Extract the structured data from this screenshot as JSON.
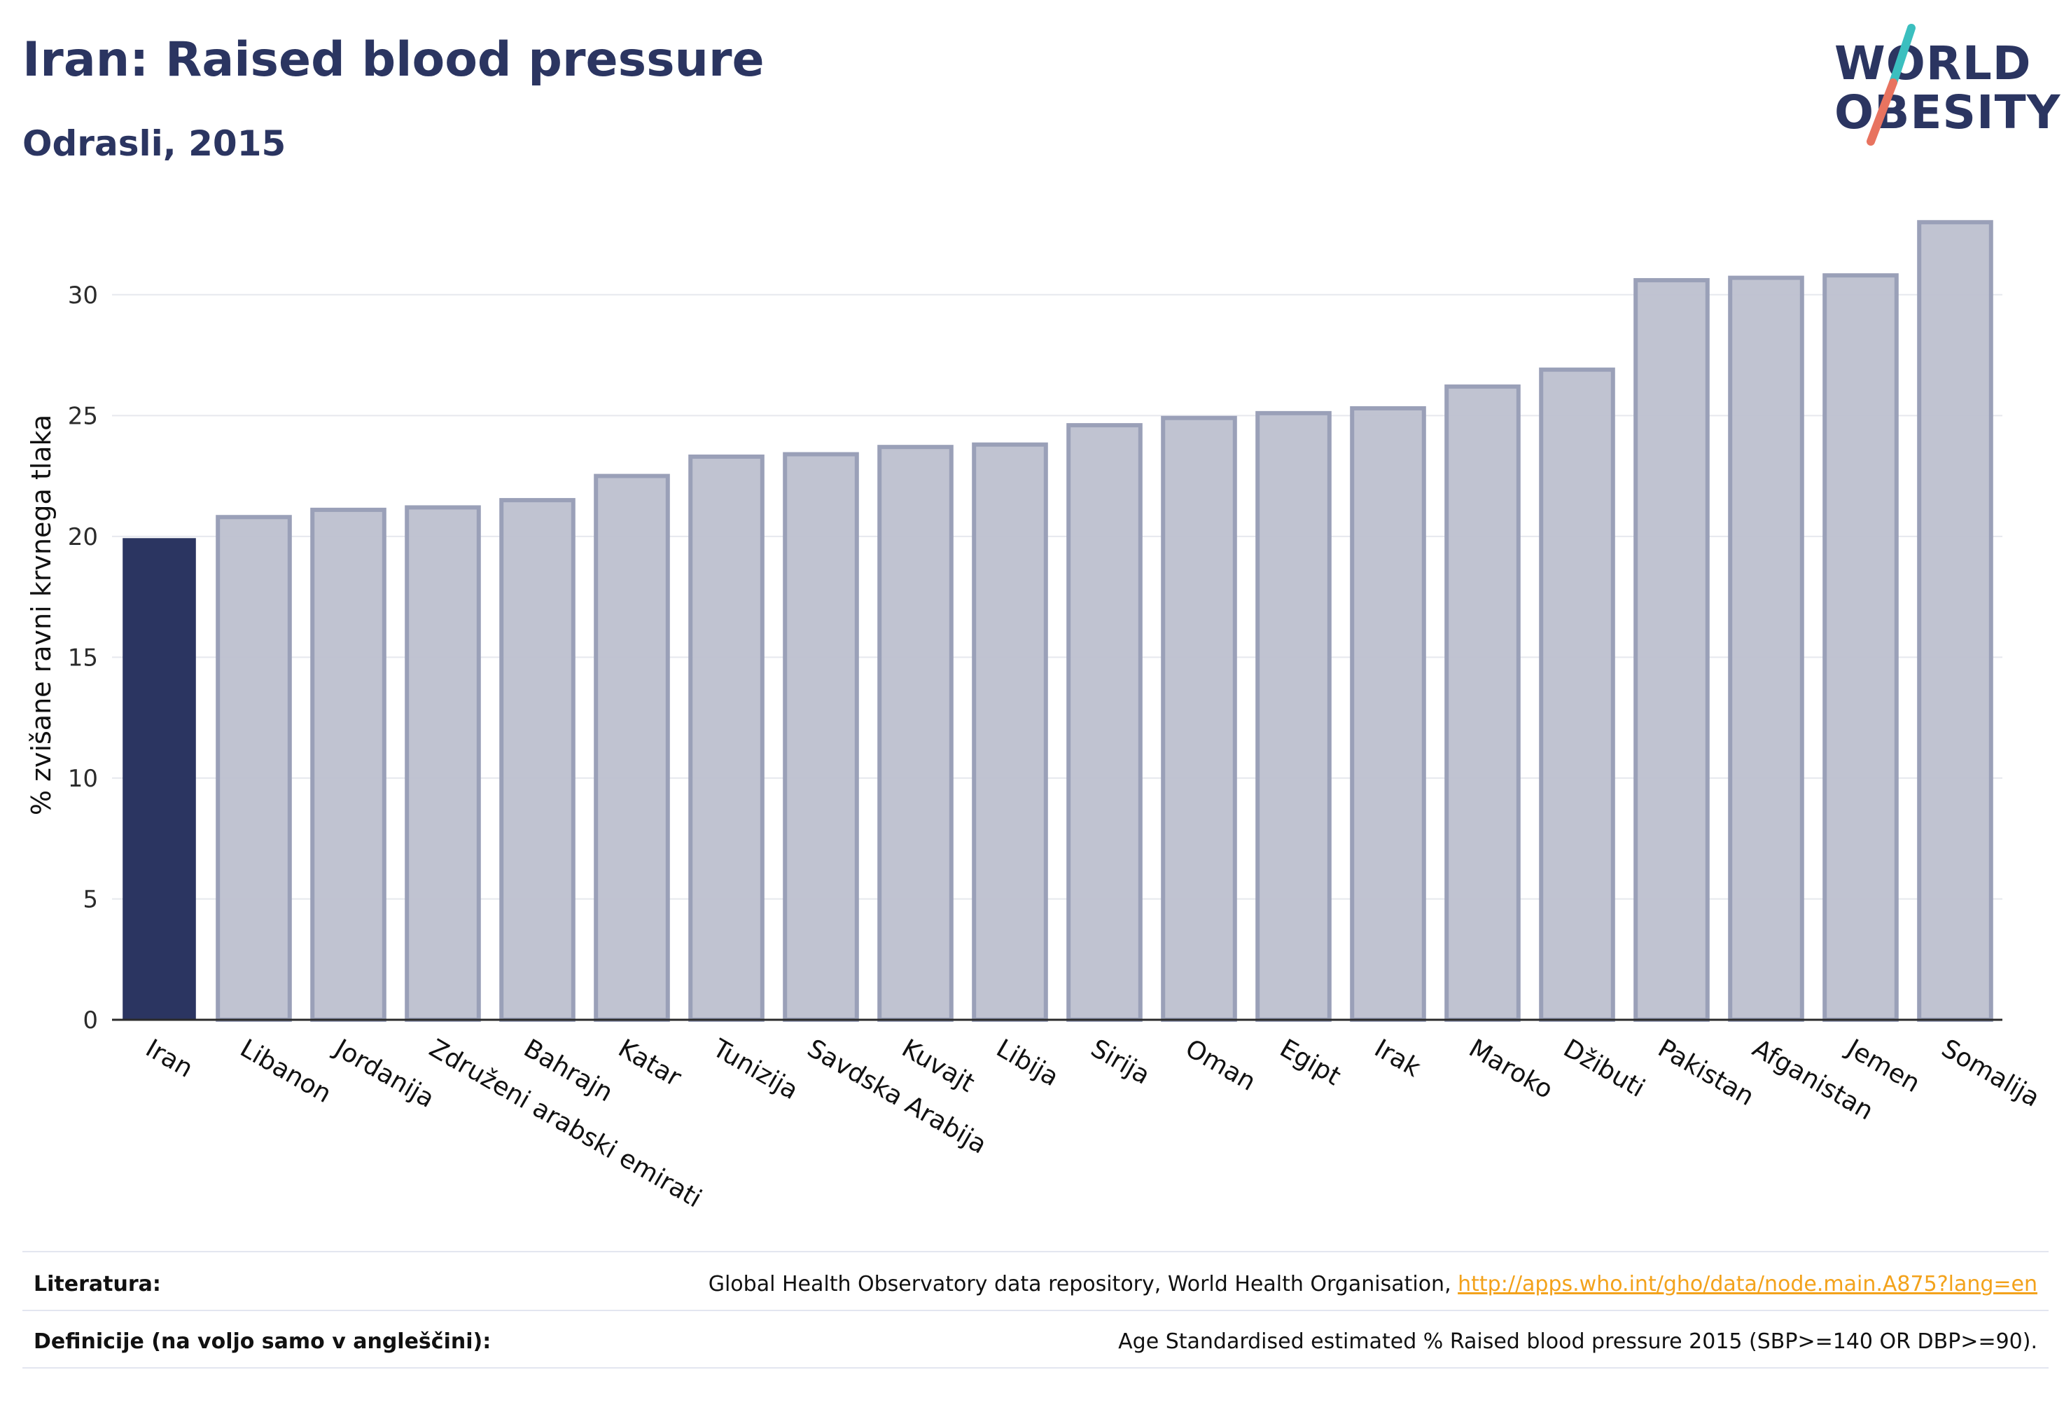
{
  "header": {
    "title": "Iran: Raised blood pressure",
    "subtitle": "Odrasli, 2015"
  },
  "logo": {
    "line1": "WORLD",
    "line2": "OBESITY",
    "slash_colors": [
      "#3bbfbf",
      "#e8735f"
    ]
  },
  "chart_data": {
    "type": "bar",
    "title": "Iran: Raised blood pressure",
    "subtitle": "Odrasli, 2015",
    "ylabel": "% zvišane ravni krvnega tlaka",
    "xlabel": "",
    "ylim": [
      0,
      33.5
    ],
    "yticks": [
      0,
      5,
      10,
      15,
      20,
      25,
      30
    ],
    "grid": true,
    "highlight": "Iran",
    "colors": {
      "highlight": "#2b3561",
      "other_fill": "#bdc0cf",
      "other_stroke": "#9aa0b8"
    },
    "categories": [
      "Iran",
      "Libanon",
      "Jordanija",
      "Združeni arabski emirati",
      "Bahrajn",
      "Katar",
      "Tunizija",
      "Savdska Arabija",
      "Kuvajt",
      "Libija",
      "Sirija",
      "Oman",
      "Egipt",
      "Irak",
      "Maroko",
      "Džibuti",
      "Pakistan",
      "Afganistan",
      "Jemen",
      "Somalija"
    ],
    "values": [
      19.9,
      20.8,
      21.1,
      21.2,
      21.5,
      22.5,
      23.3,
      23.4,
      23.7,
      23.8,
      24.6,
      24.9,
      25.1,
      25.3,
      26.2,
      26.9,
      30.6,
      30.7,
      30.8,
      33.0
    ]
  },
  "footer": {
    "literature_label": "Literatura:",
    "literature_text": "Global Health Observatory data repository, World Health Organisation, ",
    "literature_link": "http://apps.who.int/gho/data/node.main.A875?lang=en",
    "definitions_label": "Definicije (na voljo samo v angleščini):",
    "definitions_text": "Age Standardised estimated % Raised blood pressure 2015 (SBP>=140 OR DBP>=90)."
  }
}
